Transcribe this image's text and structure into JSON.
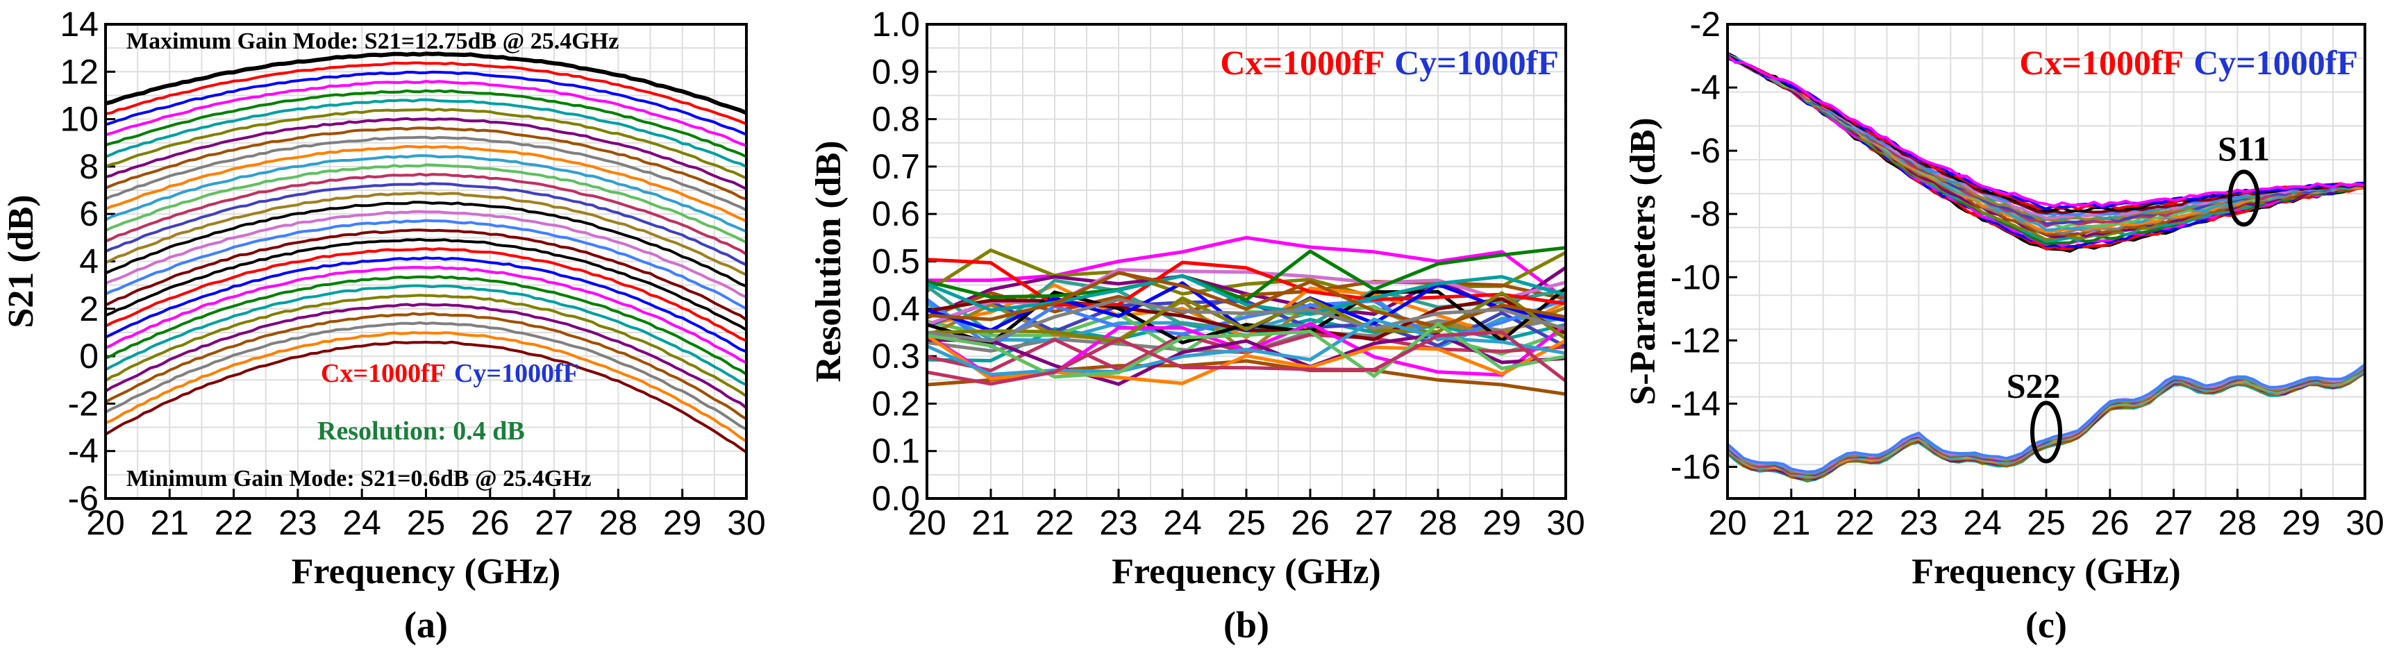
{
  "figure": {
    "panels": [
      {
        "letter": "(a)",
        "xlabel": "Frequency (GHz)",
        "ylabel": "S21 (dB)",
        "xlim": [
          20,
          30
        ],
        "ylim": [
          -6,
          14
        ],
        "xticks": [
          "20",
          "21",
          "22",
          "23",
          "24",
          "25",
          "26",
          "27",
          "28",
          "29",
          "30"
        ],
        "yticks": [
          "-6",
          "-4",
          "-2",
          "0",
          "2",
          "4",
          "6",
          "8",
          "10",
          "12",
          "14"
        ],
        "annotations": {
          "max_mode": "Maximum Gain Mode: S21=12.75dB @ 25.4GHz",
          "min_mode": "Minimum Gain Mode: S21=0.6dB @ 25.4GHz",
          "cx": "Cx=1000fF",
          "cy": "Cy=1000fF",
          "resolution": "Resolution: 0.4 dB"
        }
      },
      {
        "letter": "(b)",
        "xlabel": "Frequency (GHz)",
        "ylabel": "Resolution (dB)",
        "xlim": [
          20,
          30
        ],
        "ylim": [
          0,
          1.0
        ],
        "xticks": [
          "20",
          "21",
          "22",
          "23",
          "24",
          "25",
          "26",
          "27",
          "28",
          "29",
          "30"
        ],
        "yticks": [
          "0.0",
          "0.1",
          "0.2",
          "0.3",
          "0.4",
          "0.5",
          "0.6",
          "0.7",
          "0.8",
          "0.9",
          "1.0"
        ],
        "annotations": {
          "cx": "Cx=1000fF",
          "cy": "Cy=1000fF"
        }
      },
      {
        "letter": "(c)",
        "xlabel": "Frequency (GHz)",
        "ylabel": "S-Parameters (dB)",
        "xlim": [
          20,
          30
        ],
        "ylim": [
          -17,
          -2
        ],
        "xticks": [
          "20",
          "21",
          "22",
          "23",
          "24",
          "25",
          "26",
          "27",
          "28",
          "29",
          "30"
        ],
        "yticks": [
          "-16",
          "-14",
          "-12",
          "-10",
          "-8",
          "-6",
          "-4",
          "-2"
        ],
        "annotations": {
          "cx": "Cx=1000fF",
          "cy": "Cy=1000fF",
          "s11": "S11",
          "s22": "S22"
        }
      }
    ],
    "colors": {
      "cx": "#ff0000",
      "cy": "#1f35d6",
      "resolution": "#1a7f3a",
      "series_palette": [
        "#000000",
        "#ff0000",
        "#0000ff",
        "#ff00ff",
        "#008000",
        "#00a0a0",
        "#808000",
        "#7f007f",
        "#a05000",
        "#808080",
        "#ff8000",
        "#2fa0d0",
        "#60c060",
        "#c03060",
        "#4040c0",
        "#a08020",
        "#30a090",
        "#d070d0",
        "#4080ff",
        "#800000"
      ]
    }
  },
  "chart_data": [
    {
      "type": "line",
      "title": "",
      "xlabel": "Frequency (GHz)",
      "ylabel": "S21 (dB)",
      "xlim": [
        20,
        30
      ],
      "ylim": [
        -6,
        14
      ],
      "grid": true,
      "x": [
        20,
        21,
        22,
        23,
        24,
        25,
        26,
        27,
        28,
        29,
        30
      ],
      "series_description": "32 gain states spaced ~0.4 dB apart, top curve peaking at 12.75 dB and bottom curve peaking at 0.6 dB near 25.4 GHz",
      "series": [
        {
          "values": [
            7.0,
            9.1,
            10.9,
            12.1,
            12.7,
            12.75,
            12.6,
            11.9,
            10.6,
            8.8,
            6.3
          ]
        },
        {
          "values": [
            -3.0,
            -1.5,
            -0.3,
            0.4,
            0.7,
            0.6,
            0.4,
            -0.1,
            -0.9,
            -2.0,
            -3.4
          ]
        }
      ]
    },
    {
      "type": "line",
      "title": "",
      "xlabel": "Frequency (GHz)",
      "ylabel": "Resolution (dB)",
      "xlim": [
        20,
        30
      ],
      "ylim": [
        0,
        1.0
      ],
      "grid": true,
      "x": [
        20,
        21,
        22,
        23,
        24,
        25,
        26,
        27,
        28,
        29,
        30
      ],
      "series_description": "~31 step-resolution curves clustered between 0.2 and 0.55 dB",
      "series": [
        {
          "values": [
            0.46,
            0.46,
            0.47,
            0.5,
            0.52,
            0.55,
            0.53,
            0.52,
            0.5,
            0.52,
            0.42
          ]
        },
        {
          "values": [
            0.24,
            0.25,
            0.27,
            0.28,
            0.28,
            0.29,
            0.27,
            0.27,
            0.25,
            0.24,
            0.22
          ]
        }
      ]
    },
    {
      "type": "line",
      "title": "",
      "xlabel": "Frequency (GHz)",
      "ylabel": "S-Parameters (dB)",
      "xlim": [
        20,
        30
      ],
      "ylim": [
        -17,
        -2
      ],
      "grid": true,
      "x": [
        20,
        21,
        22,
        23,
        24,
        25,
        26,
        27,
        28,
        29,
        30
      ],
      "series": [
        {
          "name": "S11",
          "values": [
            -3.0,
            -4.0,
            -5.3,
            -6.6,
            -7.6,
            -8.4,
            -8.3,
            -8.0,
            -7.6,
            -7.3,
            -7.1
          ]
        },
        {
          "name": "S22",
          "values": [
            -15.5,
            -16.3,
            -15.8,
            -15.2,
            -15.9,
            -15.4,
            -14.2,
            -13.4,
            -13.4,
            -13.5,
            -13.0
          ]
        }
      ]
    }
  ]
}
